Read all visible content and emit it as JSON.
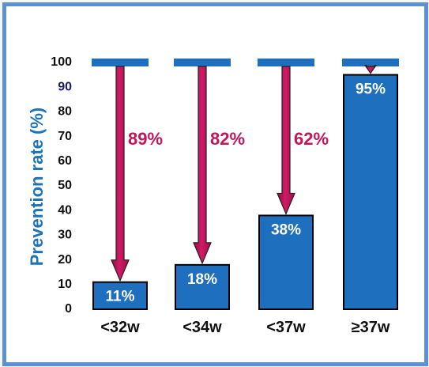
{
  "chart_data": {
    "type": "bar",
    "ylabel": "Prevention rate (%)",
    "ylim": [
      0,
      100
    ],
    "yticks": [
      "0",
      "10",
      "20",
      "30",
      "40",
      "50",
      "60",
      "70",
      "80",
      "90",
      "100"
    ],
    "categories": [
      "<32w",
      "<34w",
      "<37w",
      "≥37w"
    ],
    "values": [
      11,
      18,
      38,
      95
    ],
    "bar_labels": [
      "11%",
      "18%",
      "38%",
      "95%"
    ],
    "reduction_labels": [
      "89%",
      "82%",
      "62%",
      ""
    ],
    "reference_value": 100,
    "colors": {
      "bar": "#1e6fbd",
      "arrow": "#c4145c",
      "axis_label": "#1c73b9",
      "frame": "#5b8fd6"
    }
  }
}
